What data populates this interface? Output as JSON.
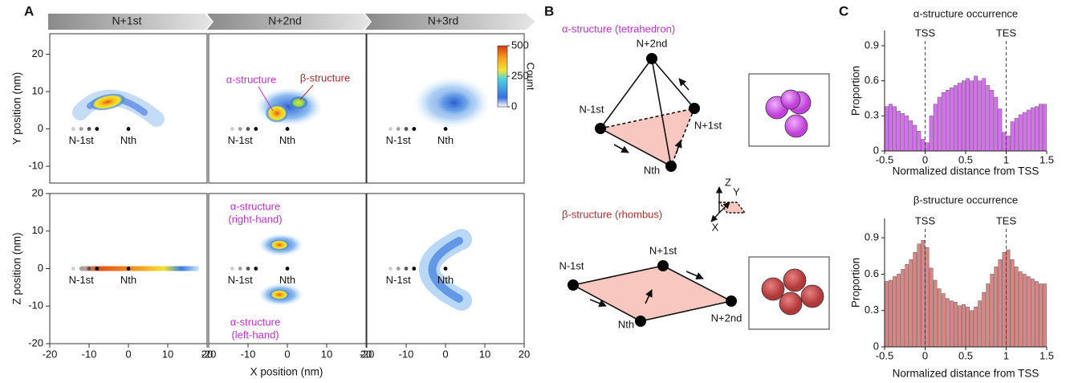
{
  "panel_labels": [
    "A",
    "B",
    "C"
  ],
  "panel_a": {
    "column_headers": [
      "N+1st",
      "N+2nd",
      "N+3rd"
    ],
    "xlim": [
      -20,
      20
    ],
    "xticks": [
      -20,
      -10,
      0,
      10,
      20
    ],
    "x_label": "X position (nm)",
    "rows": [
      {
        "y_label": "Y position (nm)",
        "ylim": [
          -14.5,
          25.5
        ],
        "yticks": [
          -10,
          0,
          10,
          20
        ]
      },
      {
        "y_label": "Z position (nm)",
        "ylim": [
          -20,
          20
        ],
        "yticks": [
          -20,
          -10,
          0,
          10,
          20
        ]
      }
    ],
    "bead_labels": [
      "N-1st",
      "Nth"
    ],
    "previous_beads_x": [
      -14,
      -12,
      -10,
      -8
    ],
    "nth_x": 0,
    "annotations": {
      "top_alpha": "α-structure",
      "top_beta": "β-structure",
      "right_hand": [
        "α-structure",
        "(right-hand)"
      ],
      "left_hand": [
        "α-structure",
        "(left-hand)"
      ]
    },
    "colorbar": {
      "label": "Count",
      "lim": [
        0,
        500
      ],
      "ticks": [
        0,
        250,
        500
      ]
    }
  },
  "panel_b": {
    "alpha_title": "α-structure (tetrahedron)",
    "alpha_nodes": [
      "N+2nd",
      "N-1st",
      "N+1st",
      "Nth"
    ],
    "beta_title": "β-structure (rhombus)",
    "beta_nodes": [
      "N-1st",
      "N+1st",
      "N+2nd",
      "Nth"
    ],
    "axes": [
      "Z",
      "Y",
      "X"
    ]
  },
  "chart_data": [
    {
      "type": "bar",
      "title": "α-structure occurrence",
      "x_label": "Normalized distance from TSS",
      "y_label": "Proportion",
      "color": "#d76ff0",
      "x": [
        -0.475,
        -0.425,
        -0.375,
        -0.325,
        -0.275,
        -0.225,
        -0.175,
        -0.125,
        -0.075,
        -0.025,
        0.025,
        0.075,
        0.125,
        0.175,
        0.225,
        0.275,
        0.325,
        0.375,
        0.425,
        0.475,
        0.525,
        0.575,
        0.625,
        0.675,
        0.725,
        0.775,
        0.825,
        0.875,
        0.925,
        0.975,
        1.025,
        1.075,
        1.125,
        1.175,
        1.225,
        1.275,
        1.325,
        1.375,
        1.425,
        1.475
      ],
      "values": [
        0.38,
        0.4,
        0.38,
        0.34,
        0.32,
        0.3,
        0.26,
        0.22,
        0.17,
        0.1,
        0.07,
        0.3,
        0.4,
        0.46,
        0.5,
        0.52,
        0.54,
        0.56,
        0.58,
        0.6,
        0.62,
        0.6,
        0.64,
        0.6,
        0.62,
        0.56,
        0.52,
        0.46,
        0.36,
        0.16,
        0.13,
        0.25,
        0.28,
        0.31,
        0.33,
        0.35,
        0.37,
        0.38,
        0.4,
        0.4
      ],
      "xlim": [
        -0.5,
        1.5
      ],
      "xticks": [
        -0.5,
        0,
        0.5,
        1,
        1.5
      ],
      "ylim": [
        0,
        1.03
      ],
      "yticks": [
        0,
        0.3,
        0.6,
        0.9
      ],
      "markers": [
        {
          "value": 0,
          "label": "TSS"
        },
        {
          "value": 1,
          "label": "TES"
        }
      ]
    },
    {
      "type": "bar",
      "title": "β-structure occurrence",
      "x_label": "Normalized distance from TSS",
      "y_label": "Proportion",
      "color": "#dc8585",
      "x": [
        -0.475,
        -0.425,
        -0.375,
        -0.325,
        -0.275,
        -0.225,
        -0.175,
        -0.125,
        -0.075,
        -0.025,
        0.025,
        0.075,
        0.125,
        0.175,
        0.225,
        0.275,
        0.325,
        0.375,
        0.425,
        0.475,
        0.525,
        0.575,
        0.625,
        0.675,
        0.725,
        0.775,
        0.825,
        0.875,
        0.925,
        0.975,
        1.025,
        1.075,
        1.125,
        1.175,
        1.225,
        1.275,
        1.325,
        1.375,
        1.425,
        1.475
      ],
      "values": [
        0.54,
        0.55,
        0.58,
        0.6,
        0.64,
        0.68,
        0.72,
        0.78,
        0.85,
        0.88,
        0.82,
        0.65,
        0.55,
        0.48,
        0.44,
        0.4,
        0.38,
        0.37,
        0.34,
        0.35,
        0.33,
        0.3,
        0.33,
        0.38,
        0.45,
        0.52,
        0.6,
        0.66,
        0.72,
        0.78,
        0.8,
        0.72,
        0.66,
        0.62,
        0.6,
        0.58,
        0.56,
        0.54,
        0.52,
        0.52
      ],
      "xlim": [
        -0.5,
        1.5
      ],
      "xticks": [
        -0.5,
        0,
        0.5,
        1,
        1.5
      ],
      "ylim": [
        0,
        1.06
      ],
      "yticks": [
        0,
        0.3,
        0.6,
        0.9
      ],
      "markers": [
        {
          "value": 0,
          "label": "TSS"
        },
        {
          "value": 1,
          "label": "TES"
        }
      ]
    }
  ]
}
